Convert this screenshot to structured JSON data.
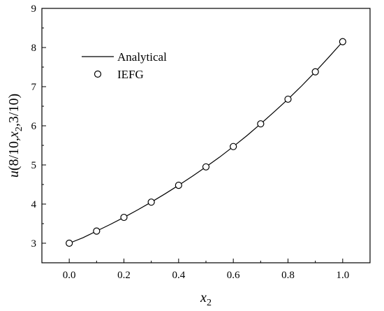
{
  "chart_data": {
    "type": "line",
    "title": "",
    "xlabel": "x_2",
    "ylabel": "u(8/10,x_2,3/10)",
    "xlim": [
      -0.1,
      1.1
    ],
    "ylim": [
      2.5,
      9
    ],
    "x_ticks": [
      "0.0",
      "0.2",
      "0.4",
      "0.6",
      "0.8",
      "1.0"
    ],
    "x_tick_values": [
      0.0,
      0.2,
      0.4,
      0.6,
      0.8,
      1.0
    ],
    "y_ticks": [
      "3",
      "4",
      "5",
      "6",
      "7",
      "8",
      "9"
    ],
    "y_tick_values": [
      3,
      4,
      5,
      6,
      7,
      8,
      9
    ],
    "grid": false,
    "legend_position": "top-left",
    "series": [
      {
        "name": "Analytical",
        "style": "line",
        "color": "#000000",
        "x": [
          0.0,
          0.05,
          0.1,
          0.15,
          0.2,
          0.25,
          0.3,
          0.35,
          0.4,
          0.45,
          0.5,
          0.55,
          0.6,
          0.65,
          0.7,
          0.75,
          0.8,
          0.85,
          0.9,
          0.95,
          1.0
        ],
        "y": [
          3.0,
          3.14,
          3.31,
          3.48,
          3.66,
          3.85,
          4.05,
          4.26,
          4.48,
          4.71,
          4.95,
          5.2,
          5.47,
          5.75,
          6.05,
          6.36,
          6.68,
          7.02,
          7.38,
          7.76,
          8.15
        ]
      },
      {
        "name": "IEFG",
        "style": "markers",
        "marker": "open-circle",
        "color": "#000000",
        "x": [
          0.0,
          0.1,
          0.2,
          0.3,
          0.4,
          0.5,
          0.6,
          0.7,
          0.8,
          0.9,
          1.0
        ],
        "y": [
          3.0,
          3.31,
          3.66,
          4.05,
          4.48,
          4.95,
          5.47,
          6.05,
          6.68,
          7.38,
          8.15
        ]
      }
    ]
  }
}
